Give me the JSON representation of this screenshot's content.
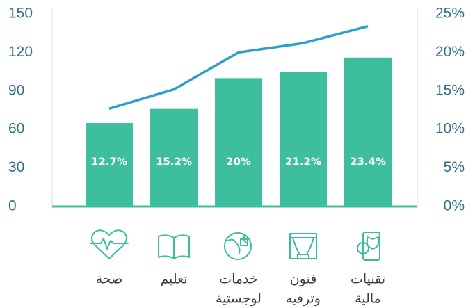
{
  "chart_data": {
    "type": "bar_line",
    "categories": [
      [
        "صحة"
      ],
      [
        "تعليم"
      ],
      [
        "خدمات",
        "لوجستية"
      ],
      [
        "فنون",
        "وترفيه"
      ],
      [
        "تقنيات",
        "مالية"
      ]
    ],
    "series": [
      {
        "type": "bar",
        "color": "#3dbf9f",
        "values": [
          65,
          76,
          100,
          105,
          116
        ]
      },
      {
        "type": "line",
        "axis": "y2",
        "color": "#2a9fd0",
        "values": [
          12.7,
          15.2,
          20,
          21.2,
          23.4
        ],
        "value_labels": [
          "12.7%",
          "15.2%",
          "20%",
          "21.2%",
          "23.4%"
        ]
      }
    ],
    "ylim": [
      0,
      150
    ],
    "yticks": [
      0,
      30,
      60,
      90,
      120,
      150
    ],
    "y2lim": [
      0,
      25
    ],
    "y2ticks": [
      {
        "value": 0,
        "label": "0%"
      },
      {
        "value": 5,
        "label": "5%"
      },
      {
        "value": 10,
        "label": "10%"
      },
      {
        "value": 15,
        "label": "15%"
      },
      {
        "value": 20,
        "label": "20%"
      },
      {
        "value": 25,
        "label": "25%"
      }
    ]
  }
}
